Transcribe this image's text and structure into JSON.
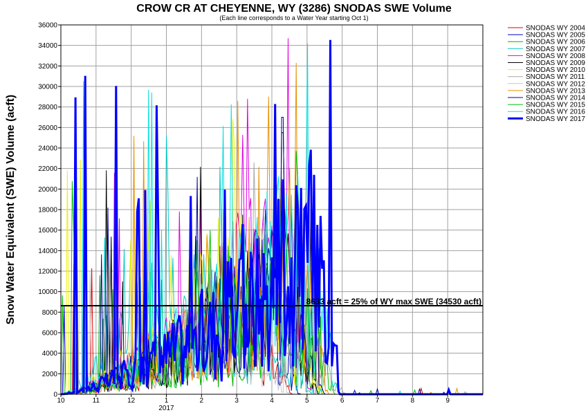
{
  "chart_data": {
    "type": "line",
    "title": "CROW CR AT CHEYENNE, WY (3286) SNODAS SWE Volume",
    "subtitle": "(Each line corresponds to a Water Year starting Oct 1)",
    "ylabel": "Snow Water Equivalent (SWE) Volume (acft)",
    "xlabel": "",
    "ylim": [
      0,
      36000
    ],
    "y_ticks": [
      0,
      2000,
      4000,
      6000,
      8000,
      10000,
      12000,
      14000,
      16000,
      18000,
      20000,
      22000,
      24000,
      26000,
      28000,
      30000,
      32000,
      34000,
      36000
    ],
    "x_ticks": [
      {
        "label": "10",
        "month": 0
      },
      {
        "label": "11",
        "month": 1
      },
      {
        "label": "12",
        "month": 2
      },
      {
        "label": "1",
        "month": 3
      },
      {
        "label": "2",
        "month": 4
      },
      {
        "label": "3",
        "month": 5
      },
      {
        "label": "4",
        "month": 6
      },
      {
        "label": "5",
        "month": 7
      },
      {
        "label": "6",
        "month": 8
      },
      {
        "label": "7",
        "month": 9
      },
      {
        "label": "8",
        "month": 10
      },
      {
        "label": "9",
        "month": 11
      }
    ],
    "year_label": "2017",
    "grid": true,
    "legend_position": "right",
    "reference_line": {
      "value": 8633,
      "label": "8633 acft = 25% of WY max SWE (34530 acft)"
    },
    "series": [
      {
        "name": "SNODAS WY 2004",
        "color": "#e00000",
        "peak_month": 5.2,
        "peak": 16500,
        "melt_month": 6.6,
        "seed": 4
      },
      {
        "name": "SNODAS WY 2005",
        "color": "#0000c0",
        "peak_month": 5.8,
        "peak": 18000,
        "melt_month": 6.8,
        "seed": 5
      },
      {
        "name": "SNODAS WY 2006",
        "color": "#00b000",
        "peak_month": 6.1,
        "peak": 15000,
        "melt_month": 7.4,
        "seed": 6
      },
      {
        "name": "SNODAS WY 2007",
        "color": "#00c8c8",
        "peak_month": 3.0,
        "peak": 25200,
        "melt_month": 7.2,
        "seed": 7
      },
      {
        "name": "SNODAS WY 2008",
        "color": "#e000e0",
        "peak_month": 6.45,
        "peak": 34700,
        "melt_month": 7.2,
        "seed": 8
      },
      {
        "name": "SNODAS WY 2009",
        "color": "#000000",
        "peak_month": 6.3,
        "peak": 25500,
        "melt_month": 7.3,
        "seed": 9
      },
      {
        "name": "SNODAS WY 2010",
        "color": "#f0f000",
        "peak_month": 4.9,
        "peak": 26800,
        "melt_month": 7.5,
        "seed": 10
      },
      {
        "name": "SNODAS WY 2011",
        "color": "#a8a8a8",
        "peak_month": 5.5,
        "peak": 22600,
        "melt_month": 8.1,
        "seed": 11
      },
      {
        "name": "SNODAS WY 2012",
        "color": "#c8c8c8",
        "peak_month": 4.6,
        "peak": 18000,
        "melt_month": 6.5,
        "seed": 12
      },
      {
        "name": "SNODAS WY 2013",
        "color": "#e89000",
        "peak_month": 6.7,
        "peak": 32300,
        "melt_month": 7.6,
        "seed": 13
      },
      {
        "name": "SNODAS WY 2014",
        "color": "#0000a0",
        "peak_month": 6.3,
        "peak": 27000,
        "melt_month": 7.5,
        "seed": 14
      },
      {
        "name": "SNODAS WY 2015",
        "color": "#00c000",
        "peak_month": 6.7,
        "peak": 23700,
        "melt_month": 7.8,
        "seed": 15
      },
      {
        "name": "SNODAS WY 2016",
        "color": "#00e0e0",
        "peak_month": 7.0,
        "peak": 34200,
        "melt_month": 7.9,
        "seed": 16
      },
      {
        "name": "SNODAS WY 2017",
        "color": "#0000ff",
        "peak_month": 7.65,
        "peak": 34530,
        "melt_month": 7.9,
        "seed": 17,
        "bold": true
      }
    ]
  }
}
